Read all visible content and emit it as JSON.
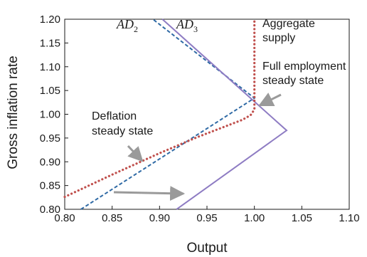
{
  "chart_data": {
    "type": "line",
    "xlabel": "Output",
    "ylabel": "Gross inflation rate",
    "xlim": [
      0.8,
      1.1
    ],
    "ylim": [
      0.8,
      1.2
    ],
    "x_ticks": [
      "0.80",
      "0.85",
      "0.90",
      "0.95",
      "1.00",
      "1.05",
      "1.10"
    ],
    "y_ticks": [
      "0.80",
      "0.85",
      "0.90",
      "0.95",
      "1.00",
      "1.05",
      "1.10",
      "1.15",
      "1.20"
    ],
    "grid": false,
    "series": [
      {
        "name": "AD2",
        "label_main": "AD",
        "label_sub": "2",
        "style": "dashed",
        "color": "#2f6aa5",
        "points": [
          [
            0.817,
            0.8
          ],
          [
            1.0,
            1.034
          ],
          [
            0.893,
            1.2
          ]
        ]
      },
      {
        "name": "AD3",
        "label_main": "AD",
        "label_sub": "3",
        "style": "solid",
        "color": "#8e7cc3",
        "points": [
          [
            0.918,
            0.8
          ],
          [
            1.034,
            0.966
          ],
          [
            0.903,
            1.2
          ]
        ]
      },
      {
        "name": "Aggregate supply",
        "style": "dotted",
        "color": "#c0504d",
        "points": [
          [
            0.8,
            0.826
          ],
          [
            0.85,
            0.873
          ],
          [
            0.9,
            0.918
          ],
          [
            0.94,
            0.952
          ],
          [
            0.97,
            0.975
          ],
          [
            0.987,
            0.988
          ],
          [
            0.996,
            0.998
          ],
          [
            1.0,
            1.01
          ],
          [
            1.0,
            1.2
          ]
        ]
      }
    ],
    "annotations": [
      {
        "id": "aggregate-supply",
        "lines": [
          "Aggregate",
          "supply"
        ]
      },
      {
        "id": "full-employment",
        "lines": [
          "Full employment",
          "steady state"
        ]
      },
      {
        "id": "deflation",
        "lines": [
          "Deflation",
          "steady state"
        ]
      }
    ]
  }
}
